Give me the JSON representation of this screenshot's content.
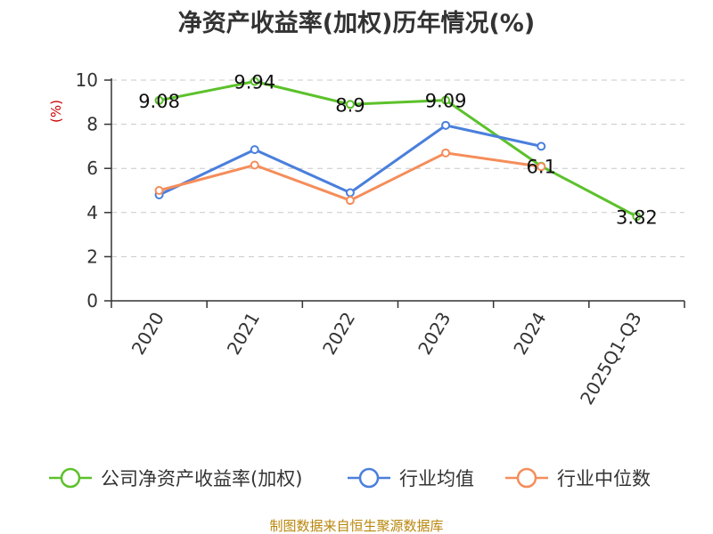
{
  "chart_data": {
    "type": "line",
    "title": "净资产收益率(加权)历年情况(%)",
    "ylabel": "(%)",
    "xlabel": "",
    "categories": [
      "2020",
      "2021",
      "2022",
      "2023",
      "2024",
      "2025Q1-Q3"
    ],
    "ylim": [
      0,
      10
    ],
    "yticks": [
      "0",
      "2",
      "4",
      "6",
      "8",
      "10"
    ],
    "grid": true,
    "legend_position": "bottom",
    "series": [
      {
        "name": "公司净资产收益率(加权)",
        "color": "#5cc12b",
        "values": [
          9.08,
          9.94,
          8.9,
          9.09,
          6.1,
          3.82
        ],
        "labels": [
          "9.08",
          "9.94",
          "8.9",
          "9.09",
          "6.1",
          "3.82"
        ]
      },
      {
        "name": "行业均值",
        "color": "#4a7fdc",
        "values": [
          4.8,
          6.85,
          4.9,
          7.95,
          7.0,
          null
        ]
      },
      {
        "name": "行业中位数",
        "color": "#f58d5a",
        "values": [
          5.0,
          6.15,
          4.55,
          6.7,
          6.08,
          null
        ]
      }
    ],
    "source": "制图数据来自恒生聚源数据库"
  }
}
